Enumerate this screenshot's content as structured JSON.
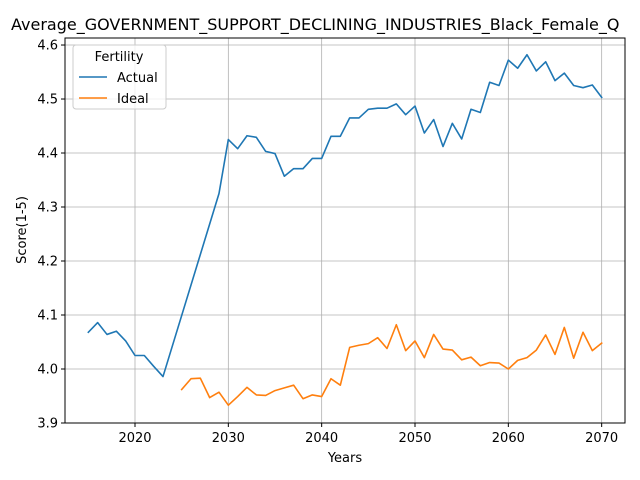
{
  "chart_data": {
    "type": "line",
    "title": "Average_GOVERNMENT_SUPPORT_DECLINING_INDUSTRIES_Black_Female_Q",
    "xlabel": "Years",
    "ylabel": "Score(1-5)",
    "xlim": [
      2012.5,
      2072.5
    ],
    "ylim": [
      3.9,
      4.613
    ],
    "x_ticks": [
      2020,
      2030,
      2040,
      2050,
      2060,
      2070
    ],
    "y_ticks": [
      3.9,
      4.0,
      4.1,
      4.2,
      4.3,
      4.4,
      4.5,
      4.6
    ],
    "x_tick_labels": [
      "2020",
      "2030",
      "2040",
      "2050",
      "2060",
      "2070"
    ],
    "y_tick_labels": [
      "3.9",
      "4.0",
      "4.1",
      "4.2",
      "4.3",
      "4.4",
      "4.5",
      "4.6"
    ],
    "grid": true,
    "legend": {
      "title": "Fertility",
      "position": "top-left"
    },
    "series": [
      {
        "name": "Actual",
        "color": "#1f77b4",
        "x": [
          2015,
          2016,
          2017,
          2018,
          2019,
          2020,
          2021,
          2022,
          2023,
          2029,
          2030,
          2031,
          2032,
          2033,
          2034,
          2035,
          2036,
          2037,
          2038,
          2039,
          2040,
          2041,
          2042,
          2043,
          2044,
          2045,
          2046,
          2047,
          2048,
          2049,
          2050,
          2051,
          2052,
          2053,
          2054,
          2055,
          2056,
          2057,
          2058,
          2059,
          2060,
          2061,
          2062,
          2063,
          2064,
          2065,
          2066,
          2067,
          2068,
          2069,
          2070
        ],
        "values": [
          4.068,
          4.086,
          4.064,
          4.07,
          4.052,
          4.025,
          4.025,
          4.005,
          3.986,
          4.325,
          4.425,
          4.408,
          4.432,
          4.429,
          4.403,
          4.399,
          4.357,
          4.371,
          4.371,
          4.39,
          4.39,
          4.431,
          4.431,
          4.465,
          4.465,
          4.481,
          4.483,
          4.483,
          4.491,
          4.471,
          4.487,
          4.437,
          4.462,
          4.412,
          4.455,
          4.426,
          4.481,
          4.475,
          4.531,
          4.525,
          4.572,
          4.557,
          4.582,
          4.552,
          4.569,
          4.534,
          4.548,
          4.525,
          4.521,
          4.526,
          4.503
        ]
      },
      {
        "name": "Ideal",
        "color": "#ff7f0e",
        "x": [
          2025,
          2026,
          2027,
          2028,
          2029,
          2030,
          2031,
          2032,
          2033,
          2034,
          2035,
          2036,
          2037,
          2038,
          2039,
          2040,
          2041,
          2042,
          2043,
          2044,
          2045,
          2046,
          2047,
          2048,
          2049,
          2050,
          2051,
          2052,
          2053,
          2054,
          2055,
          2056,
          2057,
          2058,
          2059,
          2060,
          2061,
          2062,
          2063,
          2064,
          2065,
          2066,
          2067,
          2068,
          2069,
          2070
        ],
        "values": [
          3.962,
          3.982,
          3.983,
          3.947,
          3.957,
          3.933,
          3.949,
          3.966,
          3.952,
          3.951,
          3.96,
          3.965,
          3.97,
          3.945,
          3.952,
          3.949,
          3.982,
          3.97,
          4.04,
          4.044,
          4.047,
          4.058,
          4.038,
          4.082,
          4.034,
          4.052,
          4.021,
          4.064,
          4.037,
          4.035,
          4.017,
          4.022,
          4.006,
          4.012,
          4.011,
          4.0,
          4.016,
          4.021,
          4.035,
          4.063,
          4.027,
          4.077,
          4.02,
          4.068,
          4.034,
          4.048
        ]
      }
    ]
  }
}
